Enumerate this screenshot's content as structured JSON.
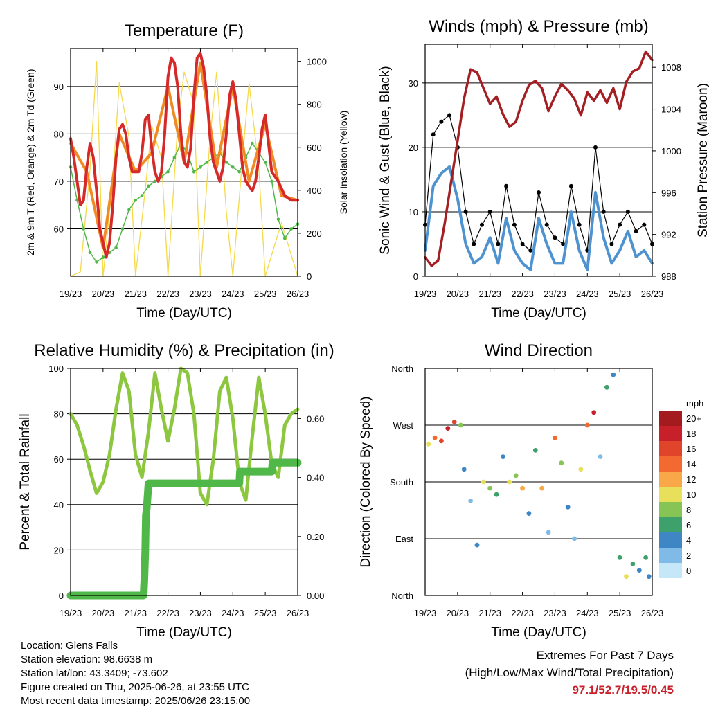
{
  "chart_data": [
    {
      "type": "line",
      "title": "Temperature (F)",
      "xlabel": "Time (Day/UTC)",
      "ylabel": "2m & 9m T (Red, Orange) & 2m Td (Green)",
      "ylabel_right": "Solar Insolation (Yellow)",
      "x_ticks": [
        "19/23",
        "20/23",
        "21/23",
        "22/23",
        "23/23",
        "24/23",
        "25/23",
        "26/23"
      ],
      "ylim": [
        50,
        98
      ],
      "y_ticks": [
        60,
        70,
        80,
        90
      ],
      "ylim_right": [
        0,
        1060
      ],
      "y_ticks_right": [
        0,
        200,
        400,
        600,
        800,
        1000
      ],
      "grid": "horizontal",
      "series": [
        {
          "name": "2m T",
          "color": "#d62a2a",
          "x": [
            0,
            0.1,
            0.2,
            0.3,
            0.4,
            0.5,
            0.6,
            0.7,
            0.8,
            0.9,
            1.0,
            1.1,
            1.2,
            1.3,
            1.4,
            1.5,
            1.6,
            1.7,
            1.8,
            1.9,
            2.0,
            2.1,
            2.2,
            2.3,
            2.4,
            2.5,
            2.6,
            2.7,
            2.8,
            2.9,
            3.0,
            3.1,
            3.2,
            3.3,
            3.4,
            3.5,
            3.6,
            3.7,
            3.8,
            3.9,
            4.0,
            4.1,
            4.2,
            4.3,
            4.4,
            4.5,
            4.6,
            4.7,
            4.8,
            4.9,
            5.0,
            5.1,
            5.2,
            5.3,
            5.4,
            5.5,
            5.6,
            5.7,
            5.8,
            5.9,
            6.0,
            6.2,
            6.4,
            6.6,
            6.8,
            7.0
          ],
          "y": [
            79,
            75,
            70,
            65,
            66,
            73,
            78,
            75,
            68,
            60,
            57,
            54,
            57,
            65,
            75,
            81,
            82,
            80,
            75,
            72,
            72,
            72,
            76,
            83,
            84,
            77,
            72,
            70,
            72,
            80,
            92,
            96,
            95,
            90,
            80,
            74,
            73,
            77,
            88,
            96,
            97,
            94,
            88,
            79,
            74,
            72,
            70,
            73,
            80,
            88,
            91,
            87,
            80,
            73,
            70,
            69,
            68,
            70,
            75,
            81,
            84,
            72,
            70,
            67,
            66,
            66
          ]
        },
        {
          "name": "9m T",
          "color": "#f08a24",
          "x": [
            0,
            0.5,
            1.0,
            1.5,
            2.0,
            2.5,
            3.0,
            3.5,
            4.0,
            4.5,
            5.0,
            5.5,
            6.0,
            6.5,
            7.0
          ],
          "y": [
            78,
            72,
            56,
            80,
            72,
            76,
            90,
            74,
            95,
            73,
            90,
            70,
            82,
            67,
            66
          ]
        },
        {
          "name": "2m Td",
          "color": "#4fb848",
          "x": [
            0,
            0.2,
            0.4,
            0.6,
            0.8,
            1.0,
            1.2,
            1.4,
            1.6,
            1.8,
            2.0,
            2.2,
            2.4,
            2.6,
            2.8,
            3.0,
            3.2,
            3.4,
            3.6,
            3.8,
            4.0,
            4.2,
            4.4,
            4.6,
            4.8,
            5.0,
            5.2,
            5.4,
            5.6,
            5.8,
            6.0,
            6.2,
            6.4,
            6.6,
            6.8,
            7.0
          ],
          "y": [
            73,
            66,
            60,
            55,
            53,
            54,
            55,
            56,
            60,
            64,
            66,
            67,
            69,
            70,
            71,
            72,
            75,
            78,
            76,
            72,
            73,
            74,
            75,
            76,
            74,
            73,
            72,
            75,
            78,
            76,
            74,
            70,
            62,
            58,
            60,
            61
          ]
        },
        {
          "name": "Solar Insolation",
          "color": "#f5d94a",
          "axis": "right",
          "x": [
            0,
            0.3,
            0.6,
            0.8,
            1.0,
            1.3,
            1.5,
            1.8,
            2.0,
            2.3,
            2.5,
            2.8,
            3.0,
            3.3,
            3.5,
            3.8,
            4.0,
            4.3,
            4.5,
            4.8,
            5.0,
            5.3,
            5.5,
            5.8,
            6.0,
            6.3,
            6.5,
            6.8,
            7.0
          ],
          "y": [
            0,
            20,
            500,
            1000,
            0,
            450,
            900,
            650,
            0,
            400,
            700,
            550,
            0,
            700,
            950,
            800,
            0,
            650,
            950,
            300,
            0,
            550,
            900,
            500,
            0,
            150,
            250,
            100,
            0
          ]
        }
      ]
    },
    {
      "type": "line",
      "title": "Winds (mph) & Pressure (mb)",
      "xlabel": "Time (Day/UTC)",
      "ylabel": "Sonic Wind & Gust (Blue, Black)",
      "ylabel_right": "Station Pressure (Maroon)",
      "x_ticks": [
        "19/23",
        "20/23",
        "21/23",
        "22/23",
        "23/23",
        "24/23",
        "25/23",
        "26/23"
      ],
      "ylim": [
        0,
        36
      ],
      "y_ticks": [
        0,
        10,
        20,
        30
      ],
      "ylim_right": [
        988,
        1010.2
      ],
      "y_ticks_right": [
        988,
        992,
        996,
        1000,
        1004,
        1008
      ],
      "grid": "horizontal",
      "series": [
        {
          "name": "Gust",
          "color": "#000000",
          "x": [
            0,
            0.25,
            0.5,
            0.75,
            1.0,
            1.25,
            1.5,
            1.75,
            2.0,
            2.25,
            2.5,
            2.75,
            3.0,
            3.25,
            3.5,
            3.75,
            4.0,
            4.25,
            4.5,
            4.75,
            5.0,
            5.25,
            5.5,
            5.75,
            6.0,
            6.25,
            6.5,
            6.75,
            7.0
          ],
          "y": [
            8,
            22,
            24,
            25,
            20,
            10,
            5,
            8,
            10,
            5,
            14,
            8,
            5,
            4,
            13,
            8,
            6,
            5,
            14,
            8,
            4,
            20,
            10,
            5,
            8,
            10,
            7,
            8,
            5
          ]
        },
        {
          "name": "Wind",
          "color": "#4e93d0",
          "x": [
            0,
            0.25,
            0.5,
            0.75,
            1.0,
            1.25,
            1.5,
            1.75,
            2.0,
            2.25,
            2.5,
            2.75,
            3.0,
            3.25,
            3.5,
            3.75,
            4.0,
            4.25,
            4.5,
            4.75,
            5.0,
            5.25,
            5.5,
            5.75,
            6.0,
            6.25,
            6.5,
            6.75,
            7.0
          ],
          "y": [
            4,
            14,
            16,
            17,
            12,
            5,
            2,
            3,
            6,
            2,
            9,
            4,
            2,
            1,
            9,
            5,
            2,
            2,
            10,
            4,
            1,
            13,
            6,
            2,
            4,
            7,
            3,
            4,
            2
          ]
        },
        {
          "name": "Station Pressure",
          "color": "#a41f23",
          "axis": "right",
          "x": [
            0,
            0.2,
            0.4,
            0.6,
            0.8,
            1.0,
            1.2,
            1.4,
            1.6,
            1.8,
            2.0,
            2.2,
            2.4,
            2.6,
            2.8,
            3.0,
            3.2,
            3.4,
            3.6,
            3.8,
            4.0,
            4.2,
            4.4,
            4.6,
            4.8,
            5.0,
            5.2,
            5.4,
            5.6,
            5.8,
            6.0,
            6.2,
            6.4,
            6.6,
            6.8,
            7.0
          ],
          "y": [
            989.8,
            989,
            989.5,
            993,
            997,
            1001,
            1005,
            1007.8,
            1007.5,
            1006,
            1004.5,
            1005.2,
            1003.5,
            1002.3,
            1002.8,
            1004.8,
            1006.3,
            1006.7,
            1006,
            1003.8,
            1005.2,
            1006.4,
            1005.8,
            1005,
            1003.4,
            1005.6,
            1004.8,
            1005.8,
            1004.6,
            1006,
            1004,
            1006.6,
            1007.6,
            1007.9,
            1009.5,
            1008.7
          ]
        }
      ]
    },
    {
      "type": "line",
      "title": "Relative Humidity (%) & Precipitation (in)",
      "xlabel": "Time (Day/UTC)",
      "ylabel": "Percent & Total Rainfall",
      "x_ticks": [
        "19/23",
        "20/23",
        "21/23",
        "22/23",
        "23/23",
        "24/23",
        "25/23",
        "26/23"
      ],
      "ylim": [
        0,
        100
      ],
      "y_ticks": [
        0,
        20,
        40,
        60,
        80,
        100
      ],
      "ylim_right": [
        0,
        0.77
      ],
      "y_ticks_right": [
        "0.00",
        "0.20",
        "0.40",
        "0.60"
      ],
      "grid": "horizontal",
      "series": [
        {
          "name": "Relative Humidity",
          "color": "#8dc63f",
          "x": [
            0,
            0.2,
            0.4,
            0.6,
            0.8,
            1.0,
            1.2,
            1.4,
            1.6,
            1.8,
            2.0,
            2.2,
            2.4,
            2.6,
            2.8,
            3.0,
            3.2,
            3.4,
            3.6,
            3.8,
            4.0,
            4.2,
            4.4,
            4.6,
            4.8,
            5.0,
            5.2,
            5.4,
            5.6,
            5.8,
            6.0,
            6.2,
            6.4,
            6.6,
            6.8,
            7.0
          ],
          "y": [
            80,
            75,
            66,
            55,
            45,
            50,
            62,
            82,
            98,
            90,
            62,
            52,
            72,
            98,
            82,
            68,
            82,
            100,
            98,
            80,
            45,
            40,
            60,
            90,
            96,
            78,
            50,
            42,
            70,
            96,
            80,
            58,
            52,
            75,
            80,
            82
          ]
        },
        {
          "name": "Total Precipitation",
          "color": "#4fb848",
          "axis": "right",
          "x": [
            0,
            1.0,
            2.0,
            2.25,
            2.27,
            2.3,
            2.32,
            2.35,
            2.4,
            3.0,
            4.0,
            5.0,
            5.2,
            5.22,
            5.5,
            6.0,
            6.2,
            6.22,
            6.5,
            7.0
          ],
          "y": [
            0,
            0,
            0,
            0,
            0.05,
            0.15,
            0.27,
            0.3,
            0.38,
            0.38,
            0.38,
            0.38,
            0.38,
            0.42,
            0.42,
            0.42,
            0.42,
            0.45,
            0.45,
            0.45
          ]
        }
      ]
    },
    {
      "type": "scatter",
      "title": "Wind Direction",
      "xlabel": "Time (Day/UTC)",
      "ylabel": "Direction (Colored By Speed)",
      "x_ticks": [
        "19/23",
        "20/23",
        "21/23",
        "22/23",
        "23/23",
        "24/23",
        "25/23",
        "26/23"
      ],
      "y_ticks": [
        "North",
        "East",
        "South",
        "West",
        "North"
      ],
      "ylim": [
        0,
        360
      ],
      "color_scale_title": "mph",
      "color_scale": [
        {
          "label": "20+",
          "color": "#a31b1e"
        },
        {
          "label": "18",
          "color": "#c8202b"
        },
        {
          "label": "16",
          "color": "#e0442a"
        },
        {
          "label": "14",
          "color": "#f26a2f"
        },
        {
          "label": "12",
          "color": "#f9a849"
        },
        {
          "label": "10",
          "color": "#e8e05a"
        },
        {
          "label": "8",
          "color": "#86c455"
        },
        {
          "label": "6",
          "color": "#3ea06a"
        },
        {
          "label": "4",
          "color": "#3f86c4"
        },
        {
          "label": "2",
          "color": "#7fbbe6"
        },
        {
          "label": "0",
          "color": "#c6e7f7"
        }
      ],
      "series": [
        {
          "name": "Direction",
          "x": [
            0.1,
            0.3,
            0.5,
            0.7,
            0.9,
            1.1,
            1.2,
            1.4,
            1.6,
            1.8,
            2.0,
            2.2,
            2.4,
            2.6,
            2.8,
            3.0,
            3.2,
            3.4,
            3.6,
            3.8,
            4.0,
            4.2,
            4.4,
            4.6,
            4.8,
            5.0,
            5.2,
            5.4,
            5.6,
            5.8,
            6.0,
            6.2,
            6.4,
            6.6,
            6.8,
            6.9
          ],
          "y": [
            240,
            250,
            245,
            265,
            275,
            270,
            200,
            150,
            80,
            180,
            170,
            160,
            220,
            180,
            190,
            170,
            130,
            230,
            170,
            100,
            250,
            210,
            140,
            90,
            200,
            270,
            290,
            220,
            330,
            350,
            60,
            30,
            50,
            40,
            60,
            30
          ],
          "speed": [
            10,
            14,
            16,
            18,
            16,
            8,
            4,
            2,
            4,
            10,
            8,
            6,
            4,
            10,
            8,
            12,
            4,
            6,
            12,
            2,
            14,
            8,
            4,
            2,
            10,
            14,
            18,
            2,
            6,
            4,
            6,
            10,
            6,
            4,
            6,
            4
          ]
        }
      ]
    }
  ],
  "info": {
    "location": "Location: Glens Falls",
    "elevation": "Station elevation: 98.6638 m",
    "latlon": "Station lat/lon: 43.3409; -73.602",
    "created": "Figure created on Thu, 2025-06-26, at 23:55 UTC",
    "recent": "Most recent data timestamp: 2025/06/26 23:15:00"
  },
  "extremes": {
    "heading": "Extremes For Past 7 Days",
    "subheading": "(High/Low/Max Wind/Total Precipitation)",
    "values": "97.1/52.7/19.5/0.45"
  }
}
